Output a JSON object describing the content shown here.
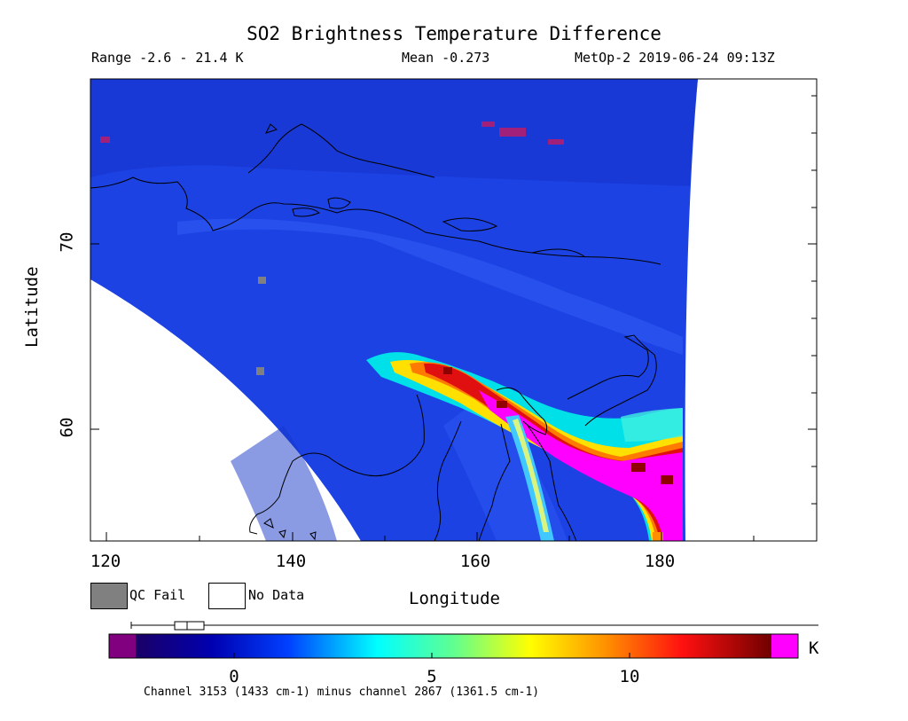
{
  "header": {
    "title": "SO2 Brightness Temperature Difference",
    "range": "Range -2.6 - 21.4 K",
    "mean": "Mean -0.273",
    "satellite_time": "MetOp-2 2019-06-24 09:13Z"
  },
  "axes": {
    "ylabel": "Latitude",
    "xlabel": "Longitude",
    "y_ticks": [
      "70",
      "60"
    ],
    "x_ticks": [
      "120",
      "140",
      "160",
      "180"
    ],
    "lon_range": [
      119.5,
      197.5
    ],
    "lat_range": [
      54.3,
      79.0
    ]
  },
  "legend": {
    "qc_fail": "QC Fail",
    "no_data": "No Data",
    "qc_fail_color": "#808080",
    "no_data_color": "#ffffff"
  },
  "colorbar": {
    "ticks": [
      "0",
      "5",
      "10"
    ],
    "unit": "K",
    "under_color": "#800080",
    "over_color": "#ff00ff",
    "range": [
      -2.6,
      21.4
    ]
  },
  "footer": "Channel 3153 (1433 cm-1) minus channel 2867 (1361.5 cm-1)",
  "colors": {
    "background_field": "#1a3ee0",
    "plume_core": "#ff00ff",
    "coastline": "#000000"
  },
  "icons": [
    "colorbar-whisker-icon"
  ]
}
